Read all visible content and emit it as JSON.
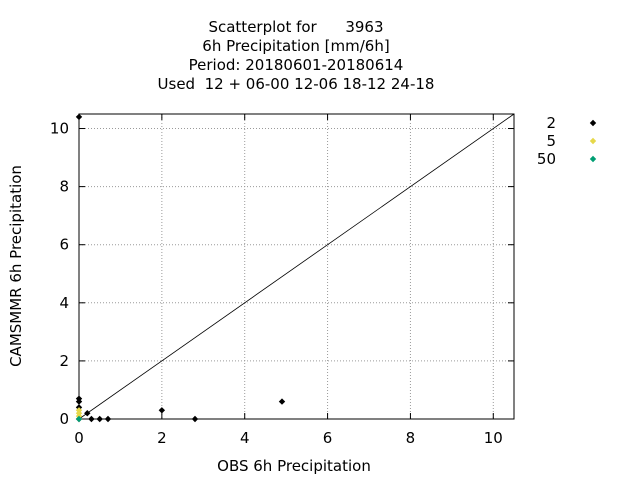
{
  "chart_data": {
    "type": "scatter",
    "title_lines": [
      "Scatterplot for      3963",
      "6h Precipitation [mm/6h]",
      "Period: 20180601-20180614",
      "Used  12 + 06-00 12-06 18-12 24-18"
    ],
    "xlabel": "OBS 6h Precipitation",
    "ylabel": "CAMSMMR 6h Precipitation",
    "xlim": [
      0,
      10.5
    ],
    "ylim": [
      0,
      10.5
    ],
    "xticks": [
      0,
      2,
      4,
      6,
      8,
      10
    ],
    "yticks": [
      0,
      2,
      4,
      6,
      8,
      10
    ],
    "grid": true,
    "diagonal": true,
    "legend_position": "outside-right",
    "series": [
      {
        "name": "2",
        "color": "#000000",
        "marker": "diamond",
        "points": [
          [
            0,
            10.4
          ],
          [
            0,
            0.7
          ],
          [
            0,
            0.6
          ],
          [
            0,
            0.4
          ],
          [
            0.2,
            0.2
          ],
          [
            0.3,
            0
          ],
          [
            0.5,
            0
          ],
          [
            0.7,
            0
          ],
          [
            2.0,
            0.3
          ],
          [
            2.8,
            0
          ],
          [
            4.9,
            0.6
          ],
          [
            0,
            0
          ]
        ]
      },
      {
        "name": "5",
        "color": "#e6d84a",
        "marker": "diamond",
        "points": [
          [
            0,
            0.3
          ],
          [
            0,
            0.2
          ],
          [
            0,
            0.1
          ]
        ]
      },
      {
        "name": "50",
        "color": "#009e73",
        "marker": "diamond",
        "points": [
          [
            0,
            0
          ]
        ]
      }
    ]
  }
}
